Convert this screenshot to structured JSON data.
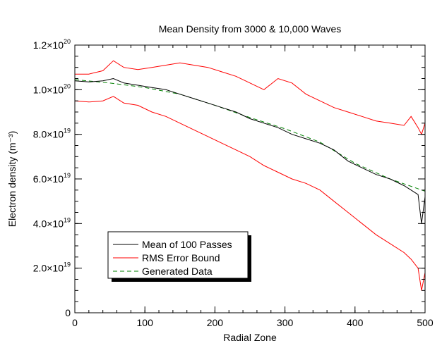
{
  "chart_data": {
    "type": "line",
    "title": "Mean Density from 3000 & 10,000 Waves",
    "xlabel": "Radial Zone",
    "ylabel": "Electron density (m⁻³)",
    "xlim": [
      0,
      500
    ],
    "ylim": [
      0,
      1.2e+20
    ],
    "x_ticks": [
      0,
      100,
      200,
      300,
      400,
      500
    ],
    "x_tick_labels": [
      "0",
      "100",
      "200",
      "300",
      "400",
      "500"
    ],
    "y_ticks": [
      0,
      2e+19,
      4e+19,
      6e+19,
      8e+19,
      1e+20,
      1.2e+20
    ],
    "y_tick_labels": [
      {
        "mant": "0",
        "exp": ""
      },
      {
        "mant": "2.0×10",
        "exp": "19"
      },
      {
        "mant": "4.0×10",
        "exp": "19"
      },
      {
        "mant": "6.0×10",
        "exp": "19"
      },
      {
        "mant": "8.0×10",
        "exp": "19"
      },
      {
        "mant": "1.0×10",
        "exp": "20"
      },
      {
        "mant": "1.2×10",
        "exp": "20"
      }
    ],
    "grid": false,
    "legend_position": "bottom-left",
    "series": [
      {
        "name": "Mean of 100 Passes",
        "color": "#000000",
        "style": "solid",
        "x": [
          0,
          20,
          40,
          55,
          70,
          90,
          110,
          130,
          150,
          170,
          190,
          210,
          230,
          250,
          270,
          290,
          310,
          330,
          350,
          370,
          390,
          410,
          430,
          450,
          470,
          480,
          490,
          495,
          500
        ],
        "y": [
          1.04e+20,
          1.035e+20,
          1.04e+20,
          1.05e+20,
          1.03e+20,
          1.02e+20,
          1.01e+20,
          1e+20,
          9.8e+19,
          9.6e+19,
          9.4e+19,
          9.2e+19,
          9e+19,
          8.7e+19,
          8.5e+19,
          8.3e+19,
          8e+19,
          7.8e+19,
          7.6e+19,
          7.3e+19,
          6.8e+19,
          6.5e+19,
          6.2e+19,
          6e+19,
          5.7e+19,
          5.5e+19,
          5.3e+19,
          4e+19,
          5.2e+19
        ]
      },
      {
        "name": "RMS Error Bound",
        "color": "#ff0000",
        "style": "solid",
        "x": [
          0,
          20,
          40,
          55,
          70,
          90,
          110,
          130,
          150,
          170,
          190,
          210,
          230,
          250,
          270,
          290,
          310,
          330,
          350,
          370,
          390,
          410,
          430,
          450,
          470,
          480,
          490,
          495,
          500
        ],
        "y": [
          1.07e+20,
          1.07e+20,
          1.085e+20,
          1.13e+20,
          1.1e+20,
          1.09e+20,
          1.1e+20,
          1.11e+20,
          1.12e+20,
          1.11e+20,
          1.1e+20,
          1.08e+20,
          1.06e+20,
          1.03e+20,
          1e+20,
          1.05e+20,
          1.03e+20,
          9.8e+19,
          9.5e+19,
          9.2e+19,
          9e+19,
          8.8e+19,
          8.6e+19,
          8.5e+19,
          8.4e+19,
          8.8e+19,
          8.3e+19,
          8e+19,
          8.5e+19
        ]
      },
      {
        "name": "",
        "color": "#ff0000",
        "style": "solid",
        "x": [
          0,
          20,
          40,
          55,
          70,
          90,
          110,
          130,
          150,
          170,
          190,
          210,
          230,
          250,
          270,
          290,
          310,
          330,
          350,
          370,
          390,
          410,
          430,
          450,
          470,
          480,
          490,
          495,
          500
        ],
        "y": [
          9.5e+19,
          9.45e+19,
          9.5e+19,
          9.7e+19,
          9.4e+19,
          9.3e+19,
          9e+19,
          8.8e+19,
          8.5e+19,
          8.2e+19,
          7.9e+19,
          7.6e+19,
          7.3e+19,
          7e+19,
          6.6e+19,
          6.3e+19,
          6e+19,
          5.8e+19,
          5.5e+19,
          5e+19,
          4.5e+19,
          4e+19,
          3.5e+19,
          3.1e+19,
          2.7e+19,
          2.4e+19,
          2e+19,
          1e+19,
          1.8e+19
        ]
      },
      {
        "name": "Generated Data",
        "color": "#008000",
        "style": "dashed",
        "x": [
          0,
          50,
          100,
          150,
          200,
          250,
          300,
          350,
          400,
          450,
          500
        ],
        "y": [
          1.045e+20,
          1.03e+20,
          1.01e+20,
          9.8e+19,
          9.3e+19,
          8.75e+19,
          8.25e+19,
          7.65e+19,
          6.7e+19,
          6e+19,
          5.45e+19
        ]
      }
    ]
  }
}
